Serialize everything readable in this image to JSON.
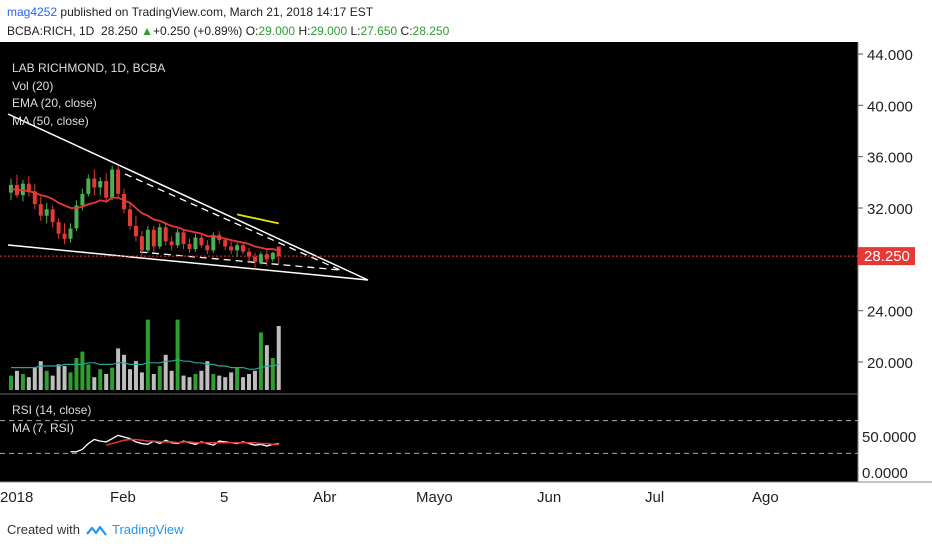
{
  "header": {
    "user": "mag4252",
    "published": "published on TradingView.com, March 21, 2018 14:17 EST",
    "symbol": "BCBA:RICH, 1D",
    "last": "28.250",
    "change": "+0.250 (+0.89%)",
    "o_label": "O:",
    "o_value": "29.000",
    "h_label": "H:",
    "h_value": "29.000",
    "l_label": "L:",
    "l_value": "27.650",
    "c_label": "C:",
    "c_value": "28.250"
  },
  "legend": {
    "title": "LAB RICHMOND, 1D, BCBA",
    "vol": "Vol (20)",
    "ema": "EMA (20, close)",
    "ma": "MA (50, close)",
    "rsi": "RSI (14, close)",
    "rsi_ma": "MA (7, RSI)"
  },
  "footer": {
    "created_with": "Created with",
    "brand": "TradingView"
  },
  "colors": {
    "background": "#000000",
    "up": "#4caf50",
    "down": "#e53935",
    "ema": "#e53935",
    "ma": "#e5e50b",
    "rsi": "#ffffff",
    "rsi_ma": "#e53935",
    "vol_up": "#2e9e2e",
    "vol_down": "#bdbdbd",
    "vol_ma": "#26a69a",
    "trendline": "#ffffff",
    "price_line": "#e53935"
  },
  "chart_data": {
    "type": "candlestick",
    "x_ticks": [
      "2018",
      "Feb",
      "5",
      "Abr",
      "Mayo",
      "Jun",
      "Jul",
      "Ago"
    ],
    "y_ticks": [
      20,
      24,
      28,
      32,
      36,
      40,
      44
    ],
    "y_tick_labels": [
      "20.000",
      "24.000",
      "32.000",
      "36.000",
      "40.000",
      "44.000"
    ],
    "ylim": [
      17.5,
      45
    ],
    "last_price": 28.25,
    "last_price_label": "28.250",
    "candles": [
      {
        "o": 33.2,
        "h": 34.3,
        "l": 32.6,
        "c": 33.8
      },
      {
        "o": 33.8,
        "h": 34.6,
        "l": 32.8,
        "c": 33.0
      },
      {
        "o": 33.0,
        "h": 34.2,
        "l": 32.5,
        "c": 33.9
      },
      {
        "o": 33.9,
        "h": 34.5,
        "l": 32.9,
        "c": 33.3
      },
      {
        "o": 33.3,
        "h": 33.9,
        "l": 31.9,
        "c": 32.3
      },
      {
        "o": 32.3,
        "h": 32.9,
        "l": 31.0,
        "c": 31.4
      },
      {
        "o": 31.4,
        "h": 32.4,
        "l": 30.8,
        "c": 31.9
      },
      {
        "o": 31.9,
        "h": 32.2,
        "l": 30.5,
        "c": 30.9
      },
      {
        "o": 30.9,
        "h": 31.2,
        "l": 29.6,
        "c": 30.0
      },
      {
        "o": 30.0,
        "h": 30.8,
        "l": 29.2,
        "c": 29.6
      },
      {
        "o": 29.6,
        "h": 30.8,
        "l": 29.3,
        "c": 30.4
      },
      {
        "o": 30.4,
        "h": 32.6,
        "l": 30.2,
        "c": 32.2
      },
      {
        "o": 32.2,
        "h": 33.5,
        "l": 31.8,
        "c": 33.1
      },
      {
        "o": 33.1,
        "h": 34.6,
        "l": 32.9,
        "c": 34.3
      },
      {
        "o": 34.3,
        "h": 35.0,
        "l": 33.0,
        "c": 33.6
      },
      {
        "o": 33.6,
        "h": 34.4,
        "l": 33.0,
        "c": 34.1
      },
      {
        "o": 34.1,
        "h": 34.7,
        "l": 32.4,
        "c": 32.8
      },
      {
        "o": 32.8,
        "h": 35.3,
        "l": 32.6,
        "c": 35.0
      },
      {
        "o": 35.0,
        "h": 35.3,
        "l": 32.8,
        "c": 33.1
      },
      {
        "o": 33.1,
        "h": 33.5,
        "l": 31.6,
        "c": 31.9
      },
      {
        "o": 31.9,
        "h": 32.4,
        "l": 30.3,
        "c": 30.6
      },
      {
        "o": 30.6,
        "h": 31.4,
        "l": 29.4,
        "c": 29.8
      },
      {
        "o": 29.8,
        "h": 30.2,
        "l": 28.3,
        "c": 28.7
      },
      {
        "o": 28.7,
        "h": 30.6,
        "l": 28.5,
        "c": 30.3
      },
      {
        "o": 30.3,
        "h": 30.6,
        "l": 28.6,
        "c": 29.0
      },
      {
        "o": 29.0,
        "h": 30.8,
        "l": 28.8,
        "c": 30.5
      },
      {
        "o": 30.5,
        "h": 30.9,
        "l": 29.1,
        "c": 29.4
      },
      {
        "o": 29.4,
        "h": 29.8,
        "l": 28.7,
        "c": 29.1
      },
      {
        "o": 29.1,
        "h": 30.4,
        "l": 28.9,
        "c": 30.1
      },
      {
        "o": 30.1,
        "h": 30.3,
        "l": 28.8,
        "c": 29.2
      },
      {
        "o": 29.2,
        "h": 29.6,
        "l": 28.5,
        "c": 28.8
      },
      {
        "o": 28.8,
        "h": 30.0,
        "l": 28.6,
        "c": 29.7
      },
      {
        "o": 29.7,
        "h": 29.9,
        "l": 28.9,
        "c": 29.1
      },
      {
        "o": 29.1,
        "h": 29.5,
        "l": 28.4,
        "c": 28.7
      },
      {
        "o": 28.7,
        "h": 30.1,
        "l": 28.5,
        "c": 29.9
      },
      {
        "o": 29.9,
        "h": 30.2,
        "l": 29.2,
        "c": 29.5
      },
      {
        "o": 29.5,
        "h": 29.7,
        "l": 28.7,
        "c": 29.0
      },
      {
        "o": 29.0,
        "h": 29.4,
        "l": 28.4,
        "c": 28.7
      },
      {
        "o": 28.7,
        "h": 29.3,
        "l": 28.2,
        "c": 29.1
      },
      {
        "o": 29.1,
        "h": 29.3,
        "l": 28.4,
        "c": 28.6
      },
      {
        "o": 28.6,
        "h": 28.9,
        "l": 27.8,
        "c": 28.2
      },
      {
        "o": 28.2,
        "h": 28.5,
        "l": 27.4,
        "c": 27.8
      },
      {
        "o": 27.8,
        "h": 28.6,
        "l": 27.6,
        "c": 28.4
      },
      {
        "o": 28.4,
        "h": 28.7,
        "l": 27.5,
        "c": 28.0
      },
      {
        "o": 28.0,
        "h": 28.6,
        "l": 27.8,
        "c": 28.5
      },
      {
        "o": 29.0,
        "h": 29.0,
        "l": 27.65,
        "c": 28.25
      }
    ],
    "ema": [
      33.5,
      33.4,
      33.4,
      33.3,
      33.2,
      33.0,
      32.9,
      32.7,
      32.4,
      32.2,
      32.0,
      32.0,
      32.1,
      32.3,
      32.4,
      32.6,
      32.5,
      32.8,
      32.8,
      32.6,
      32.4,
      32.0,
      31.6,
      31.4,
      31.1,
      31.0,
      30.8,
      30.6,
      30.5,
      30.3,
      30.2,
      30.1,
      30.0,
      29.8,
      29.8,
      29.7,
      29.6,
      29.5,
      29.4,
      29.3,
      29.2,
      29.0,
      28.9,
      28.8,
      28.8,
      28.7
    ],
    "ma50": [
      null,
      null,
      null,
      null,
      null,
      null,
      null,
      null,
      null,
      null,
      null,
      null,
      null,
      null,
      null,
      null,
      null,
      null,
      null,
      null,
      null,
      null,
      null,
      null,
      null,
      null,
      null,
      null,
      null,
      null,
      null,
      null,
      null,
      null,
      null,
      null,
      null,
      null,
      31.5,
      31.4,
      31.3,
      31.2,
      31.1,
      31.0,
      30.9,
      30.8
    ],
    "volume": [
      9,
      12,
      10,
      8,
      14,
      18,
      12,
      9,
      16,
      15,
      11,
      20,
      24,
      16,
      8,
      13,
      10,
      14,
      26,
      22,
      13,
      18,
      11,
      44,
      10,
      15,
      22,
      12,
      44,
      9,
      8,
      10,
      12,
      18,
      10,
      9,
      8,
      11,
      14,
      8,
      10,
      12,
      36,
      28,
      20,
      40
    ],
    "volume_ma": [
      14,
      14,
      14,
      14,
      14,
      15,
      15,
      15,
      15,
      16,
      16,
      16,
      16,
      17,
      17,
      16,
      16,
      16,
      17,
      17,
      16,
      16,
      16,
      17,
      17,
      17,
      18,
      18,
      19,
      18,
      18,
      17,
      17,
      16,
      16,
      15,
      15,
      14,
      14,
      14,
      13,
      13,
      14,
      15,
      15,
      16
    ],
    "rsi": [
      null,
      null,
      null,
      null,
      null,
      null,
      null,
      null,
      null,
      null,
      32,
      32,
      35,
      42,
      47,
      45,
      44,
      48,
      52,
      50,
      48,
      44,
      42,
      41,
      45,
      42,
      46,
      43,
      42,
      45,
      43,
      41,
      44,
      42,
      40,
      45,
      44,
      43,
      42,
      44,
      42,
      40,
      41,
      39,
      41,
      42
    ],
    "rsi_ma": [
      null,
      null,
      null,
      null,
      null,
      null,
      null,
      null,
      null,
      null,
      null,
      null,
      null,
      null,
      null,
      null,
      40,
      42,
      44,
      46,
      47,
      47,
      46,
      45,
      45,
      44,
      44,
      44,
      43,
      44,
      44,
      43,
      43,
      43,
      43,
      43,
      43,
      43,
      43,
      43,
      43,
      43,
      42,
      42,
      41,
      41
    ],
    "rsi_ticks": [
      50,
      0
    ],
    "rsi_tick_labels": [
      "50.0000",
      "0.0000"
    ],
    "rsi_bands": [
      70,
      30
    ]
  }
}
